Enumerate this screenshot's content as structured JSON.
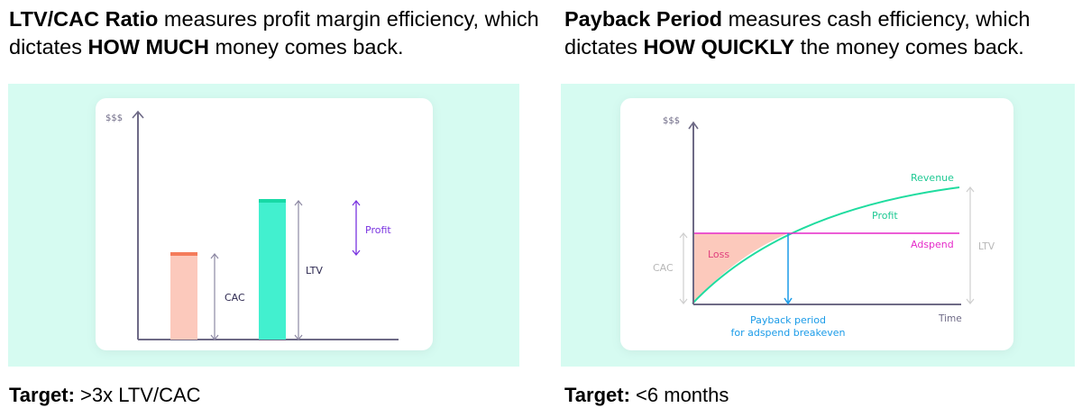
{
  "left": {
    "heading": {
      "bold_start": "LTV/CAC Ratio",
      "text_1": " measures profit margin efficiency, which dictates ",
      "bold_mid": "HOW MUCH",
      "text_2": " money comes back."
    },
    "diagram": {
      "y_axis_label": "$$$",
      "bars": [
        {
          "name": "CAC",
          "value": 1,
          "fill": "#fcc9bc",
          "top_color": "#f47b5b"
        },
        {
          "name": "LTV",
          "value": 1.6,
          "fill": "#42f0cf",
          "top_color": "#18d9a6"
        }
      ],
      "cac_label": "CAC",
      "ltv_label": "LTV",
      "profit_label": "Profit"
    },
    "target": {
      "bold": "Target:",
      "text": " >3x LTV/CAC"
    }
  },
  "right": {
    "heading": {
      "bold_start": "Payback Period",
      "text_1": " measures cash efficiency, which dictates ",
      "bold_mid": "HOW QUICKLY",
      "text_2": " the money comes back."
    },
    "diagram": {
      "y_axis_label": "$$$",
      "revenue_label": "Revenue",
      "profit_label": "Profit",
      "adspend_label": "Adspend",
      "loss_label": "Loss",
      "cac_label": "CAC",
      "ltv_label": "LTV",
      "x_axis_label": "Time",
      "payback_label_line1": "Payback period",
      "payback_label_line2": "for adspend breakeven"
    },
    "target": {
      "bold": "Target:",
      "text": " <6 months"
    }
  },
  "colors": {
    "panel_bg": "#d6fbf1",
    "axis": "#6e6a86",
    "revenue": "#1fdc9f",
    "adspend": "#e529c9",
    "loss_fill": "#fcc9bc",
    "payback": "#1a9be8",
    "profit_arrow": "#7a34e0",
    "muted": "#bdbdbd"
  }
}
